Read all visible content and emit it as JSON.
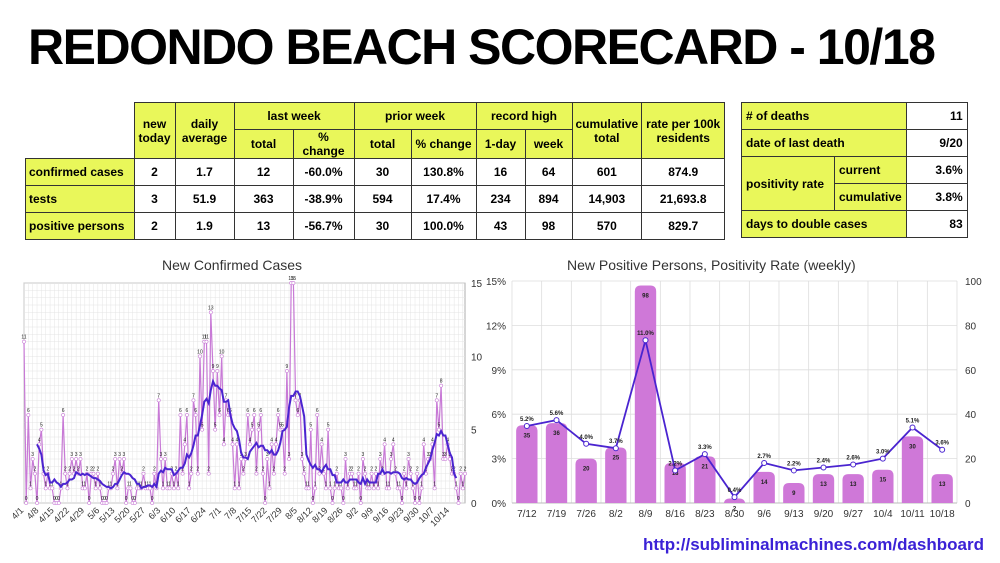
{
  "title": "REDONDO BEACH SCORECARD - 10/18",
  "table": {
    "headers": {
      "new_today": "new today",
      "daily_average": "daily average",
      "last_week": "last week",
      "prior_week": "prior week",
      "record_high": "record high",
      "cumulative_total": "cumulative total",
      "rate": "rate per 100k residents",
      "total": "total",
      "pct_change": "% change",
      "one_day": "1-day",
      "week": "week"
    },
    "rows": [
      {
        "label": "confirmed cases",
        "cells": [
          "2",
          "1.7",
          "12",
          "-60.0%",
          "30",
          "130.8%",
          "16",
          "64",
          "601",
          "874.9"
        ]
      },
      {
        "label": "tests",
        "cells": [
          "3",
          "51.9",
          "363",
          "-38.9%",
          "594",
          "17.4%",
          "234",
          "894",
          "14,903",
          "21,693.8"
        ]
      },
      {
        "label": "positive persons",
        "cells": [
          "2",
          "1.9",
          "13",
          "-56.7%",
          "30",
          "100.0%",
          "43",
          "98",
          "570",
          "829.7"
        ]
      }
    ]
  },
  "side": {
    "deaths_label": "# of deaths",
    "deaths_value": "11",
    "last_death_label": "date of last death",
    "last_death_value": "9/20",
    "positivity_label": "positivity rate",
    "current_label": "current",
    "current_value": "3.6%",
    "cumulative_label": "cumulative",
    "cumulative_value": "3.8%",
    "double_label": "days to double cases",
    "double_value": "83"
  },
  "url": "http://subliminalmachines.com/dashboard",
  "colors": {
    "bar": "#cf78d8",
    "line": "#4a24d0",
    "highlight": "#e9f75a",
    "daily": "#c87ad6"
  },
  "chart_data": [
    {
      "type": "line",
      "title": "New Confirmed Cases",
      "ylim": [
        0,
        15
      ],
      "y_ticks": [
        0,
        5,
        10,
        15
      ],
      "x_tick_labels": [
        "4/1",
        "4/8",
        "4/15",
        "4/22",
        "4/29",
        "5/6",
        "5/13",
        "5/20",
        "5/27",
        "6/3",
        "6/10",
        "6/17",
        "6/24",
        "7/1",
        "7/8",
        "7/15",
        "7/22",
        "7/29",
        "8/5",
        "8/12",
        "8/19",
        "8/26",
        "9/2",
        "9/9",
        "9/16",
        "9/23",
        "9/30",
        "10/7",
        "10/14"
      ],
      "grid": true,
      "daily": [
        11,
        0,
        6,
        1,
        3,
        2,
        0,
        4,
        5,
        2,
        1,
        2,
        1,
        1,
        0,
        0,
        0,
        1,
        6,
        2,
        1,
        2,
        3,
        2,
        3,
        2,
        3,
        1,
        1,
        2,
        0,
        2,
        2,
        1,
        2,
        1,
        0,
        0,
        0,
        1,
        1,
        2,
        3,
        1,
        3,
        2,
        3,
        0,
        1,
        1,
        0,
        0,
        1,
        1,
        1,
        2,
        1,
        1,
        1,
        0,
        2,
        1,
        7,
        3,
        1,
        3,
        1,
        1,
        2,
        1,
        2,
        1,
        6,
        2,
        4,
        6,
        1,
        2,
        7,
        6,
        2,
        10,
        5,
        11,
        11,
        2,
        13,
        9,
        5,
        9,
        6,
        10,
        4,
        7,
        6,
        6,
        4,
        1,
        4,
        1,
        3,
        2,
        3,
        6,
        4,
        5,
        6,
        2,
        5,
        6,
        2,
        0,
        3,
        1,
        4,
        2,
        4,
        6,
        5,
        5,
        2,
        9,
        3,
        15,
        15,
        7,
        6,
        7,
        3,
        2,
        1,
        1,
        5,
        0,
        1,
        6,
        2,
        4,
        2,
        1,
        5,
        1,
        0,
        1,
        2,
        1,
        1,
        0,
        3,
        1,
        2,
        2,
        1,
        1,
        2,
        0,
        3,
        2,
        1,
        1,
        2,
        1,
        2,
        1,
        3,
        2,
        4,
        1,
        1,
        3,
        4,
        2,
        1,
        1,
        0,
        2,
        1,
        3,
        2,
        1,
        0,
        2,
        0,
        1,
        4,
        2,
        3,
        3,
        4,
        1,
        7,
        5,
        8,
        3,
        3,
        4,
        3,
        2,
        2,
        1,
        0,
        2,
        1,
        2
      ],
      "avg_series_name": "7-day average",
      "avg": [
        null,
        null,
        null,
        null,
        null,
        null,
        4.0,
        3.7,
        3.3,
        2.2,
        1.9,
        2.0,
        1.4,
        1.4,
        1.6,
        1.4,
        1.3,
        1.1,
        1.3,
        1.3,
        1.4,
        1.6,
        1.6,
        1.7,
        2.1,
        2.0,
        1.9,
        2.0,
        1.9,
        2.0,
        1.9,
        1.8,
        1.7,
        1.7,
        1.6,
        1.5,
        1.3,
        1.2,
        1.1,
        1.1,
        1.0,
        1.1,
        1.3,
        1.3,
        1.6,
        1.9,
        2.1,
        2.0,
        2.0,
        1.9,
        1.7,
        1.6,
        1.3,
        1.3,
        1.0,
        1.1,
        1.1,
        1.2,
        1.2,
        1.1,
        1.3,
        1.1,
        2.0,
        2.2,
        2.1,
        2.4,
        2.3,
        2.3,
        2.3,
        1.9,
        2.0,
        2.2,
        2.4,
        2.4,
        2.7,
        3.3,
        3.1,
        3.4,
        3.9,
        4.6,
        4.6,
        5.3,
        6.0,
        6.9,
        7.1,
        6.8,
        7.7,
        8.3,
        8.0,
        8.0,
        7.8,
        7.7,
        6.9,
        6.9,
        7.0,
        6.0,
        5.4,
        5.1,
        4.9,
        4.3,
        3.4,
        3.1,
        3.1,
        3.0,
        3.5,
        3.7,
        3.9,
        4.1,
        3.8,
        3.9,
        3.9,
        3.6,
        3.6,
        3.4,
        3.6,
        3.3,
        3.3,
        3.6,
        4.1,
        4.9,
        5.0,
        5.2,
        6.5,
        7.3,
        7.3,
        7.6,
        7.6,
        7.3,
        6.6,
        5.9,
        3.3,
        2.9,
        2.6,
        2.4,
        2.6,
        2.3,
        2.3,
        2.1,
        2.4,
        2.6,
        2.3,
        2.3,
        1.9,
        1.9,
        1.4,
        1.4,
        1.4,
        1.6,
        1.4,
        1.4,
        1.6,
        1.6,
        1.6,
        1.6,
        1.4,
        1.3,
        1.7,
        1.3,
        1.6,
        1.4,
        1.4,
        1.4,
        1.4,
        2.0,
        2.0,
        2.3,
        2.0,
        2.1,
        2.1,
        2.0,
        2.1,
        2.1,
        2.1,
        2.0,
        1.7,
        1.6,
        1.7,
        1.6,
        1.6,
        1.4,
        1.3,
        1.4,
        1.7,
        1.9,
        2.0,
        2.4,
        2.7,
        3.0,
        3.6,
        4.1,
        4.7,
        4.6,
        4.9,
        4.6,
        4.6,
        4.0,
        3.4,
        3.1,
        2.0,
        1.7
      ]
    },
    {
      "type": "bar",
      "title": "New Positive Persons, Positivity Rate (weekly)",
      "categories": [
        "7/12",
        "7/19",
        "7/26",
        "8/2",
        "8/9",
        "8/16",
        "8/23",
        "8/30",
        "9/6",
        "9/13",
        "9/20",
        "9/27",
        "10/4",
        "10/11",
        "10/18"
      ],
      "series": [
        {
          "values": [
            35,
            36,
            20,
            25,
            98,
            18,
            21,
            2,
            14,
            9,
            13,
            13,
            15,
            30,
            13
          ]
        },
        {
          "values": [
            5.2,
            5.6,
            4.0,
            3.7,
            11.0,
            2.2,
            3.3,
            0.4,
            2.7,
            2.2,
            2.4,
            2.6,
            3.0,
            5.1,
            3.6
          ]
        }
      ],
      "bar_labels": [
        "35",
        "36",
        "20",
        "25",
        "98",
        "18",
        "21",
        "2",
        "14",
        "9",
        "13",
        "13",
        "15",
        "30",
        "13"
      ],
      "rate_labels": [
        "5.2%",
        "5.6%",
        "4.0%",
        "3.7%",
        "11.0%",
        "2.2%",
        "3.3%",
        "0.4%",
        "2.7%",
        "2.2%",
        "2.4%",
        "2.6%",
        "3.0%",
        "5.1%",
        "3.6%"
      ],
      "y_left_ticks": [
        "0%",
        "3%",
        "6%",
        "9%",
        "12%",
        "15%"
      ],
      "y_left_lim": [
        0,
        15
      ],
      "y_right_ticks": [
        0,
        20,
        40,
        60,
        80,
        100
      ],
      "y_right_lim": [
        0,
        100
      ],
      "grid": true
    }
  ]
}
